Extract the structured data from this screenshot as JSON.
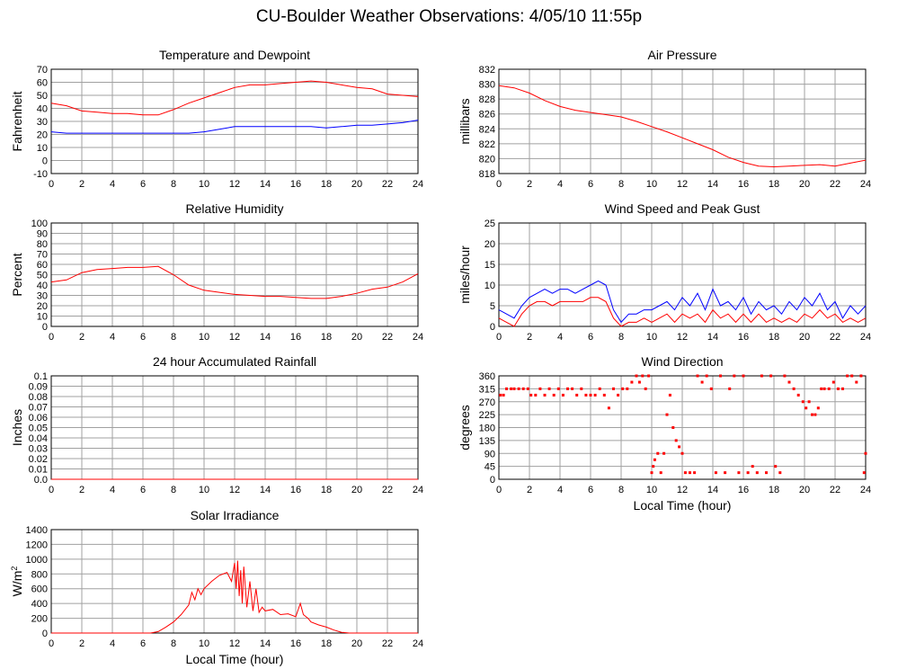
{
  "title": "CU-Boulder Weather Observations: 4/05/10 11:55p",
  "colors": {
    "primary": "#ff0000",
    "secondary": "#0000ff",
    "grid": "#a0a0a0"
  },
  "chart_data": [
    {
      "id": "temp",
      "type": "line",
      "title": "Temperature and Dewpoint",
      "xlabel": "",
      "ylabel": "Fahrenheit",
      "xlim": [
        0,
        24
      ],
      "ylim": [
        -10,
        70
      ],
      "x_ticks": [
        0,
        2,
        4,
        6,
        8,
        10,
        12,
        14,
        16,
        18,
        20,
        22,
        24
      ],
      "y_ticks": [
        -10,
        0,
        10,
        20,
        30,
        40,
        50,
        60,
        70
      ],
      "grid": true,
      "series": [
        {
          "color": "#ff0000",
          "x": [
            0,
            1,
            2,
            3,
            4,
            5,
            6,
            7,
            8,
            9,
            10,
            11,
            12,
            13,
            14,
            15,
            16,
            17,
            18,
            19,
            20,
            21,
            22,
            23,
            24
          ],
          "values": [
            44,
            42,
            38,
            37,
            36,
            36,
            35,
            35,
            39,
            44,
            48,
            52,
            56,
            58,
            58,
            59,
            60,
            61,
            60,
            58,
            56,
            55,
            51,
            50,
            49
          ]
        },
        {
          "color": "#0000ff",
          "x": [
            0,
            1,
            2,
            3,
            4,
            5,
            6,
            7,
            8,
            9,
            10,
            11,
            12,
            13,
            14,
            15,
            16,
            17,
            18,
            19,
            20,
            21,
            22,
            23,
            24
          ],
          "values": [
            22,
            21,
            21,
            21,
            21,
            21,
            21,
            21,
            21,
            21,
            22,
            24,
            26,
            26,
            26,
            26,
            26,
            26,
            25,
            26,
            27,
            27,
            28,
            29,
            31
          ]
        }
      ]
    },
    {
      "id": "pressure",
      "type": "line",
      "title": "Air Pressure",
      "xlabel": "",
      "ylabel": "millibars",
      "xlim": [
        0,
        24
      ],
      "ylim": [
        818,
        832
      ],
      "x_ticks": [
        0,
        2,
        4,
        6,
        8,
        10,
        12,
        14,
        16,
        18,
        20,
        22,
        24
      ],
      "y_ticks": [
        818,
        820,
        822,
        824,
        826,
        828,
        830,
        832
      ],
      "grid": true,
      "series": [
        {
          "color": "#ff0000",
          "x": [
            0,
            1,
            2,
            3,
            4,
            5,
            6,
            7,
            8,
            9,
            10,
            11,
            12,
            13,
            14,
            15,
            16,
            17,
            18,
            19,
            20,
            21,
            22,
            23,
            24
          ],
          "values": [
            829.8,
            829.5,
            828.8,
            827.8,
            827.0,
            826.5,
            826.2,
            825.9,
            825.6,
            825.0,
            824.3,
            823.6,
            822.8,
            822.0,
            821.2,
            820.2,
            819.5,
            819.0,
            818.9,
            819.0,
            819.1,
            819.2,
            819.0,
            819.4,
            819.8
          ]
        }
      ]
    },
    {
      "id": "humidity",
      "type": "line",
      "title": "Relative Humidity",
      "xlabel": "",
      "ylabel": "Percent",
      "xlim": [
        0,
        24
      ],
      "ylim": [
        0,
        100
      ],
      "x_ticks": [
        0,
        2,
        4,
        6,
        8,
        10,
        12,
        14,
        16,
        18,
        20,
        22,
        24
      ],
      "y_ticks": [
        0,
        10,
        20,
        30,
        40,
        50,
        60,
        70,
        80,
        90,
        100
      ],
      "grid": true,
      "series": [
        {
          "color": "#ff0000",
          "x": [
            0,
            1,
            2,
            3,
            4,
            5,
            6,
            7,
            8,
            9,
            10,
            11,
            12,
            13,
            14,
            15,
            16,
            17,
            18,
            19,
            20,
            21,
            22,
            23,
            24
          ],
          "values": [
            43,
            45,
            52,
            55,
            56,
            57,
            57,
            58,
            50,
            40,
            35,
            33,
            31,
            30,
            29,
            29,
            28,
            27,
            27,
            29,
            32,
            36,
            38,
            43,
            51
          ]
        }
      ]
    },
    {
      "id": "wind",
      "type": "line",
      "title": "Wind Speed and Peak Gust",
      "xlabel": "",
      "ylabel": "miles/hour",
      "xlim": [
        0,
        24
      ],
      "ylim": [
        0,
        25
      ],
      "x_ticks": [
        0,
        2,
        4,
        6,
        8,
        10,
        12,
        14,
        16,
        18,
        20,
        22,
        24
      ],
      "y_ticks": [
        0,
        5,
        10,
        15,
        20,
        25
      ],
      "grid": true,
      "series": [
        {
          "color": "#0000ff",
          "x": [
            0,
            0.5,
            1,
            1.5,
            2,
            2.5,
            3,
            3.5,
            4,
            4.5,
            5,
            5.5,
            6,
            6.5,
            7,
            7.5,
            8,
            8.5,
            9,
            9.5,
            10,
            10.5,
            11,
            11.5,
            12,
            12.5,
            13,
            13.5,
            14,
            14.5,
            15,
            15.5,
            16,
            16.5,
            17,
            17.5,
            18,
            18.5,
            19,
            19.5,
            20,
            20.5,
            21,
            21.5,
            22,
            22.5,
            23,
            23.5,
            24
          ],
          "values": [
            4,
            3,
            2,
            5,
            7,
            8,
            9,
            8,
            9,
            9,
            8,
            9,
            10,
            11,
            10,
            4,
            1,
            3,
            3,
            4,
            4,
            5,
            6,
            4,
            7,
            5,
            8,
            4,
            9,
            5,
            6,
            4,
            7,
            3,
            6,
            4,
            5,
            3,
            6,
            4,
            7,
            5,
            8,
            4,
            6,
            2,
            5,
            3,
            5
          ]
        },
        {
          "color": "#ff0000",
          "x": [
            0,
            0.5,
            1,
            1.5,
            2,
            2.5,
            3,
            3.5,
            4,
            4.5,
            5,
            5.5,
            6,
            6.5,
            7,
            7.5,
            8,
            8.5,
            9,
            9.5,
            10,
            10.5,
            11,
            11.5,
            12,
            12.5,
            13,
            13.5,
            14,
            14.5,
            15,
            15.5,
            16,
            16.5,
            17,
            17.5,
            18,
            18.5,
            19,
            19.5,
            20,
            20.5,
            21,
            21.5,
            22,
            22.5,
            23,
            23.5,
            24
          ],
          "values": [
            2,
            1,
            0,
            3,
            5,
            6,
            6,
            5,
            6,
            6,
            6,
            6,
            7,
            7,
            6,
            2,
            0,
            1,
            1,
            2,
            1,
            2,
            3,
            1,
            3,
            2,
            3,
            1,
            4,
            2,
            3,
            1,
            3,
            1,
            3,
            1,
            2,
            1,
            2,
            1,
            3,
            2,
            4,
            2,
            3,
            1,
            2,
            1,
            2
          ]
        }
      ]
    },
    {
      "id": "rain",
      "type": "line",
      "title": "24 hour Accumulated Rainfall",
      "xlabel": "",
      "ylabel": "Inches",
      "xlim": [
        0,
        24
      ],
      "ylim": [
        0,
        0.1
      ],
      "x_ticks": [
        0,
        2,
        4,
        6,
        8,
        10,
        12,
        14,
        16,
        18,
        20,
        22,
        24
      ],
      "y_ticks": [
        0.0,
        0.01,
        0.02,
        0.03,
        0.04,
        0.05,
        0.06,
        0.07,
        0.08,
        0.09,
        0.1
      ],
      "y_tick_labels": [
        "0.0",
        "0.01",
        "0.02",
        "0.03",
        "0.04",
        "0.05",
        "0.06",
        "0.07",
        "0.08",
        "0.09",
        "0.1"
      ],
      "grid": true,
      "series": [
        {
          "color": "#ff0000",
          "x": [
            0,
            24
          ],
          "values": [
            0,
            0
          ]
        }
      ]
    },
    {
      "id": "direction",
      "type": "scatter",
      "title": "Wind Direction",
      "xlabel": "Local Time (hour)",
      "ylabel": "degrees",
      "xlim": [
        0,
        24
      ],
      "ylim": [
        0,
        360
      ],
      "x_ticks": [
        0,
        2,
        4,
        6,
        8,
        10,
        12,
        14,
        16,
        18,
        20,
        22,
        24
      ],
      "y_ticks": [
        0,
        45,
        90,
        135,
        180,
        225,
        270,
        315,
        360
      ],
      "grid": true,
      "series": [
        {
          "color": "#ff0000",
          "x": [
            0.1,
            0.3,
            0.5,
            0.8,
            1.0,
            1.3,
            1.6,
            1.9,
            2.1,
            2.4,
            2.7,
            3.0,
            3.3,
            3.6,
            3.9,
            4.2,
            4.5,
            4.8,
            5.1,
            5.4,
            5.7,
            6.0,
            6.3,
            6.6,
            6.9,
            7.2,
            7.5,
            7.8,
            8.1,
            8.4,
            8.7,
            9.0,
            9.2,
            9.4,
            9.6,
            9.8,
            10.0,
            10.1,
            10.2,
            10.4,
            10.6,
            10.8,
            11.0,
            11.2,
            11.4,
            11.6,
            11.8,
            12.0,
            12.2,
            12.5,
            12.8,
            13.0,
            13.3,
            13.6,
            13.9,
            14.2,
            14.5,
            14.8,
            15.1,
            15.4,
            15.7,
            16.0,
            16.3,
            16.6,
            16.9,
            17.2,
            17.5,
            17.8,
            18.1,
            18.4,
            18.7,
            19.0,
            19.3,
            19.6,
            19.9,
            20.1,
            20.3,
            20.5,
            20.7,
            20.9,
            21.1,
            21.3,
            21.6,
            21.9,
            22.2,
            22.5,
            22.8,
            23.1,
            23.4,
            23.7,
            23.9,
            24.0
          ],
          "values": [
            293,
            293,
            315,
            315,
            315,
            315,
            315,
            315,
            293,
            293,
            315,
            293,
            315,
            293,
            315,
            293,
            315,
            315,
            293,
            315,
            293,
            293,
            293,
            315,
            293,
            248,
            315,
            293,
            315,
            315,
            338,
            360,
            338,
            360,
            315,
            360,
            23,
            45,
            68,
            90,
            23,
            90,
            225,
            293,
            180,
            135,
            113,
            90,
            23,
            23,
            23,
            360,
            338,
            360,
            315,
            23,
            360,
            23,
            315,
            360,
            23,
            360,
            23,
            45,
            23,
            360,
            23,
            360,
            45,
            23,
            360,
            338,
            315,
            293,
            270,
            248,
            270,
            225,
            225,
            248,
            315,
            315,
            315,
            338,
            315,
            315,
            360,
            360,
            338,
            360,
            23,
            90
          ]
        }
      ]
    },
    {
      "id": "solar",
      "type": "line",
      "title": "Solar Irradiance",
      "xlabel": "Local Time (hour)",
      "ylabel": "W/m",
      "ylabel_sup": "2",
      "xlim": [
        0,
        24
      ],
      "ylim": [
        0,
        1400
      ],
      "x_ticks": [
        0,
        2,
        4,
        6,
        8,
        10,
        12,
        14,
        16,
        18,
        20,
        22,
        24
      ],
      "y_ticks": [
        0,
        200,
        400,
        600,
        800,
        1000,
        1200,
        1400
      ],
      "grid": true,
      "series": [
        {
          "color": "#ff0000",
          "x": [
            0,
            6.5,
            7.0,
            7.5,
            8.0,
            8.5,
            9.0,
            9.2,
            9.4,
            9.6,
            9.8,
            10.0,
            10.5,
            11.0,
            11.5,
            11.8,
            12.0,
            12.1,
            12.2,
            12.3,
            12.4,
            12.5,
            12.6,
            12.8,
            13.0,
            13.2,
            13.4,
            13.6,
            13.8,
            14.0,
            14.5,
            15.0,
            15.5,
            16.0,
            16.3,
            16.5,
            16.8,
            17.0,
            17.5,
            18.0,
            18.5,
            19.0,
            19.5,
            24
          ],
          "values": [
            0,
            0,
            20,
            80,
            150,
            250,
            380,
            550,
            450,
            600,
            520,
            600,
            700,
            780,
            820,
            700,
            950,
            600,
            980,
            500,
            850,
            400,
            900,
            350,
            700,
            300,
            600,
            280,
            350,
            300,
            320,
            250,
            260,
            220,
            400,
            250,
            200,
            150,
            110,
            80,
            40,
            10,
            0,
            0
          ]
        }
      ]
    }
  ]
}
